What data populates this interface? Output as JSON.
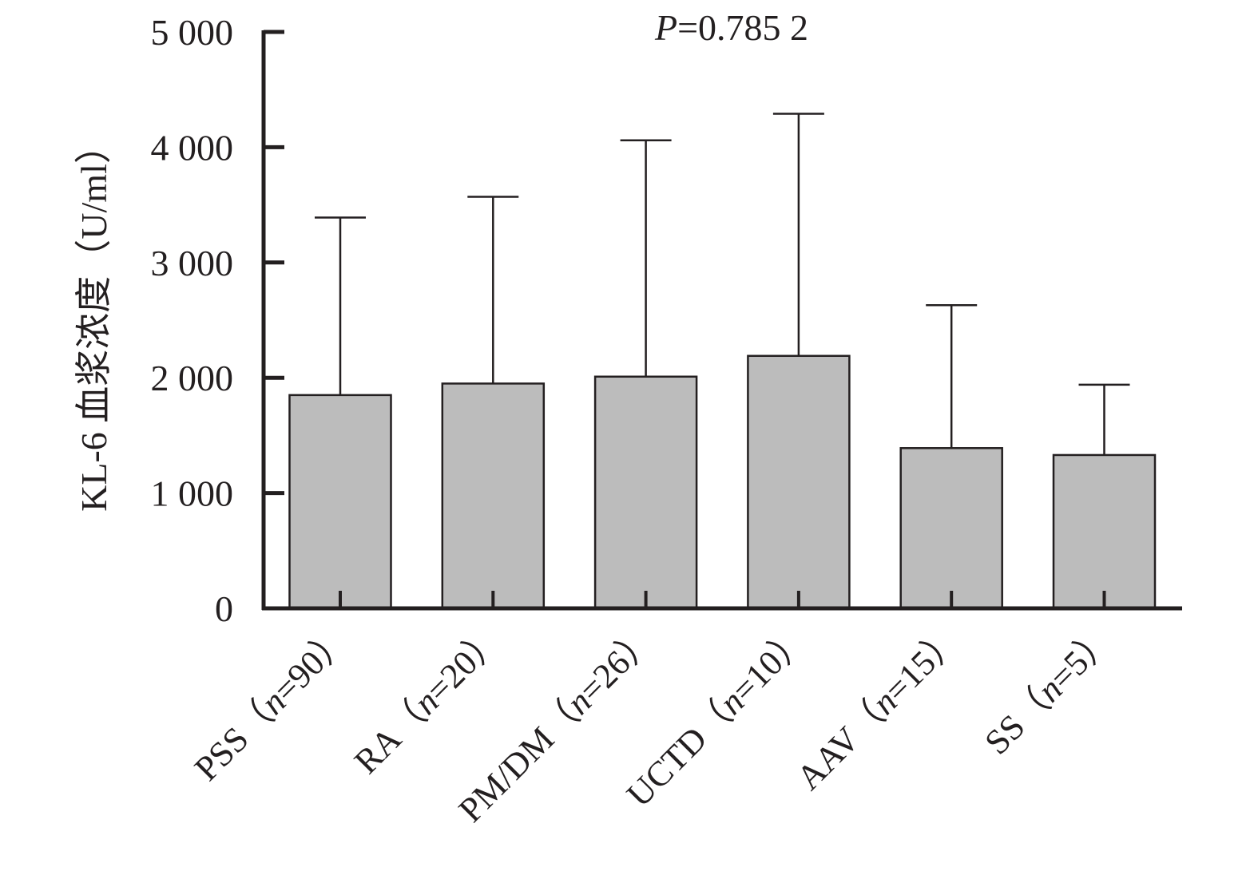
{
  "chart_data": {
    "type": "bar",
    "categories": [
      {
        "name": "PSS",
        "n": "90"
      },
      {
        "name": "RA",
        "n": "20"
      },
      {
        "name": "PM/DM",
        "n": "26"
      },
      {
        "name": "UCTD",
        "n": "10"
      },
      {
        "name": "AAV",
        "n": "15"
      },
      {
        "name": "SS",
        "n": "5"
      }
    ],
    "values": [
      1850,
      1950,
      2010,
      2190,
      1390,
      1330
    ],
    "error_upper": [
      3390,
      3570,
      4060,
      4290,
      2630,
      1940
    ],
    "ylabel": "KL-6 血浆浓度（U/ml）",
    "ylim": [
      0,
      5000
    ],
    "yticks": [
      0,
      1000,
      2000,
      3000,
      4000,
      5000
    ],
    "ytick_labels": [
      "0",
      "1 000",
      "2 000",
      "3 000",
      "4 000",
      "5 000"
    ],
    "annotation": {
      "italic": "P",
      "text": "=0.785 2"
    },
    "colors": {
      "bar_fill": "#bcbcbc",
      "stroke": "#231f20"
    },
    "grid": false,
    "legend": "none"
  }
}
